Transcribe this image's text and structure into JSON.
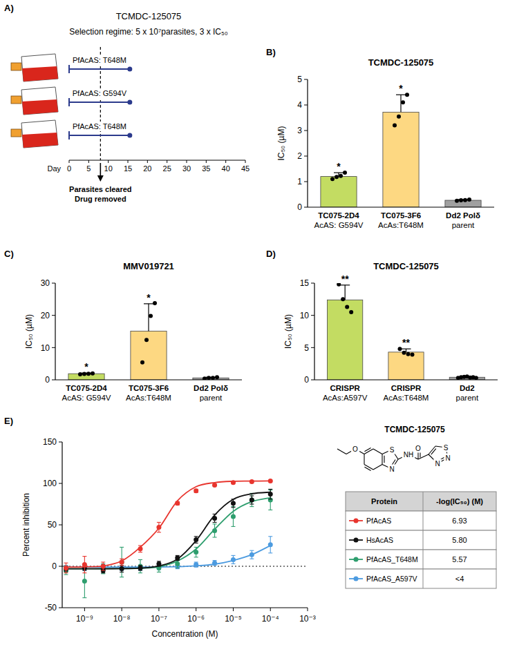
{
  "chart_data": [
    {
      "panel": "A)",
      "type": "timeline",
      "title": "TCMDC-125075",
      "subtitle": "Selection regime: 5 x 10⁷parasites, 3 x IC₅₀",
      "x_label": "Day",
      "xlim": [
        0,
        45
      ],
      "xticks": [
        0,
        5,
        10,
        15,
        20,
        25,
        30,
        35,
        40,
        45
      ],
      "series": [
        {
          "name": "PfAcAS: T648M",
          "color": "#2b3a8c",
          "values": [
            0,
            15.5
          ]
        },
        {
          "name": "PfAcAS: G594V",
          "color": "#2b3a8c",
          "values": [
            0,
            15.5
          ]
        },
        {
          "name": "PfAcAS: T648M",
          "color": "#2b3a8c",
          "values": [
            0,
            15.5
          ]
        }
      ],
      "annotation": {
        "x": 8,
        "text": [
          "Parasites cleared",
          "Drug removed"
        ]
      }
    },
    {
      "panel": "B)",
      "type": "bar",
      "title": "TCMDC-125075",
      "y_label": "IC₅₀ (µM)",
      "categories": [
        "TC075-2D4",
        "TC075-3F6",
        "Dd2 Polδ"
      ],
      "category_notes": [
        "AcAS: G594V",
        "AcAs:T648M",
        "parent"
      ],
      "values": [
        1.2,
        3.72,
        0.27
      ],
      "errors": [
        0.15,
        0.68,
        0.03
      ],
      "points": [
        [
          1.1,
          1.18,
          1.22,
          1.35
        ],
        [
          3.2,
          3.55,
          4.1,
          4.4
        ],
        [
          0.25,
          0.27,
          0.28,
          0.3
        ]
      ],
      "significance": [
        "*",
        "*",
        null
      ],
      "colors": [
        "#c3dc62",
        "#fdd882",
        "#a0a0a0"
      ],
      "ylim": [
        0,
        5
      ],
      "yticks": [
        0,
        1,
        2,
        3,
        4,
        5
      ]
    },
    {
      "panel": "C)",
      "type": "bar",
      "title": "MMV019721",
      "y_label": "IC₅₀ (µM)",
      "categories": [
        "TC075-2D4",
        "TC075-3F6",
        "Dd2 Polδ"
      ],
      "category_notes": [
        "AcAS: G594V",
        "AcAs:T648M",
        "parent"
      ],
      "values": [
        1.9,
        15.1,
        0.6
      ],
      "errors": [
        0.2,
        8.5,
        0.2
      ],
      "points": [
        [
          1.7,
          1.8,
          1.9,
          2.0
        ],
        [
          5.4,
          12.4,
          19.8,
          23.8
        ],
        [
          0.4,
          0.6,
          0.6,
          0.8
        ]
      ],
      "significance": [
        "*",
        "*",
        null
      ],
      "colors": [
        "#c3dc62",
        "#fdd882",
        "#a0a0a0"
      ],
      "ylim": [
        0,
        30
      ],
      "yticks": [
        0,
        10,
        20,
        30
      ]
    },
    {
      "panel": "D)",
      "type": "bar",
      "title": "TCMDC-125075",
      "y_label": "IC₅₀ (µM)",
      "categories": [
        "CRISPR",
        "CRISPR",
        "Dd2"
      ],
      "category_notes": [
        "AcAs:A597V",
        "AcAs:T648M",
        "parent"
      ],
      "values": [
        12.4,
        4.3,
        0.4
      ],
      "errors": [
        2.3,
        0.5,
        0.1
      ],
      "points": [
        [
          14.8,
          12.5,
          11.3,
          10.5
        ],
        [
          4.8,
          4.2,
          4.0,
          3.9
        ],
        [
          0.3,
          0.4,
          0.45,
          0.5,
          0.35,
          0.4,
          0.3
        ]
      ],
      "significance": [
        "**",
        "**",
        null
      ],
      "colors": [
        "#c3dc62",
        "#fdd882",
        "#a0a0a0"
      ],
      "ylim": [
        0,
        15
      ],
      "yticks": [
        0,
        5,
        10,
        15
      ]
    },
    {
      "panel": "E)",
      "type": "line",
      "marker": "circle",
      "log": "x",
      "x_label": "Concentration (M)",
      "y_label": "Percent inhibition",
      "xlim": [
        2.5e-10,
        0.001
      ],
      "xticks": [
        {
          "value": 1e-09,
          "label": "10⁻⁹"
        },
        {
          "value": 1e-08,
          "label": "10⁻⁸"
        },
        {
          "value": 1e-07,
          "label": "10⁻⁷"
        },
        {
          "value": 1e-06,
          "label": "10⁻⁶"
        },
        {
          "value": 1e-05,
          "label": "10⁻⁵"
        },
        {
          "value": 0.0001,
          "label": "10⁻⁴"
        },
        {
          "value": 0.001,
          "label": "10⁻³"
        }
      ],
      "ylim": [
        -50,
        150
      ],
      "yticks": [
        -50,
        0,
        50,
        100,
        150
      ],
      "reference_y": 0,
      "x": [
        3.16e-10,
        1e-09,
        3.16e-09,
        1e-08,
        3.16e-08,
        1e-07,
        3.16e-07,
        1e-06,
        3.16e-06,
        1e-05,
        3.16e-05,
        0.0001
      ],
      "series": [
        {
          "name": "PfAcAS",
          "color": "#e8352e",
          "table_value": "6.93",
          "values": [
            -2,
            2,
            0,
            5,
            21,
            47,
            76,
            91,
            98,
            101,
            102,
            103
          ],
          "errors": [
            6,
            10,
            5,
            4,
            4,
            6,
            2,
            2,
            1,
            1,
            1,
            1
          ],
          "fit_values": [
            -1,
            -0.7,
            0.4,
            6.4,
            23,
            46,
            79,
            96,
            101,
            102.6,
            102.8,
            103
          ]
        },
        {
          "name": "HsAcAS",
          "color": "#111111",
          "table_value": "5.80",
          "values": [
            -3,
            -2,
            -5,
            -3,
            -2,
            3,
            10,
            32,
            58,
            76,
            80,
            87
          ],
          "errors": [
            3,
            3,
            3,
            4,
            3,
            3,
            3,
            4,
            5,
            5,
            5,
            6
          ],
          "fit_values": [
            -3,
            -3,
            -3,
            -2.8,
            -2.2,
            0.3,
            8.8,
            31,
            61.7,
            80.8,
            87.5,
            89.4
          ]
        },
        {
          "name": "PfAcAS_T648M",
          "color": "#2e9e6e",
          "table_value": "5.57",
          "values": [
            -5,
            -18,
            -3,
            5,
            0,
            -2,
            3,
            17,
            43,
            60,
            80,
            80
          ],
          "errors": [
            5,
            20,
            6,
            18,
            8,
            5,
            5,
            6,
            8,
            12,
            8,
            12
          ],
          "fit_values": [
            -3,
            -3,
            -2.9,
            -2.8,
            -2.3,
            -0.7,
            6.3,
            20.8,
            44.6,
            66.3,
            78,
            82.7
          ]
        },
        {
          "name": "PfAcAS_A597V",
          "color": "#4c9be0",
          "table_value": "<4",
          "values": [
            -2,
            -2,
            -1,
            -2,
            -2,
            -1,
            0,
            2,
            4,
            8,
            14,
            26
          ],
          "errors": [
            3,
            3,
            3,
            3,
            3,
            3,
            3,
            3,
            3,
            5,
            5,
            10
          ],
          "fit_values": [
            -1,
            -1,
            -1,
            -1,
            -1,
            -1,
            -0.5,
            0.5,
            2.5,
            7,
            14,
            25
          ]
        }
      ],
      "table_header": [
        "Protein",
        "-log(IC₅₀) (M)"
      ],
      "structure": {
        "title": "TCMDC-125075",
        "atoms": [
          "O",
          "S",
          "N",
          "NH",
          "O",
          "S",
          "N",
          "N"
        ]
      }
    }
  ]
}
